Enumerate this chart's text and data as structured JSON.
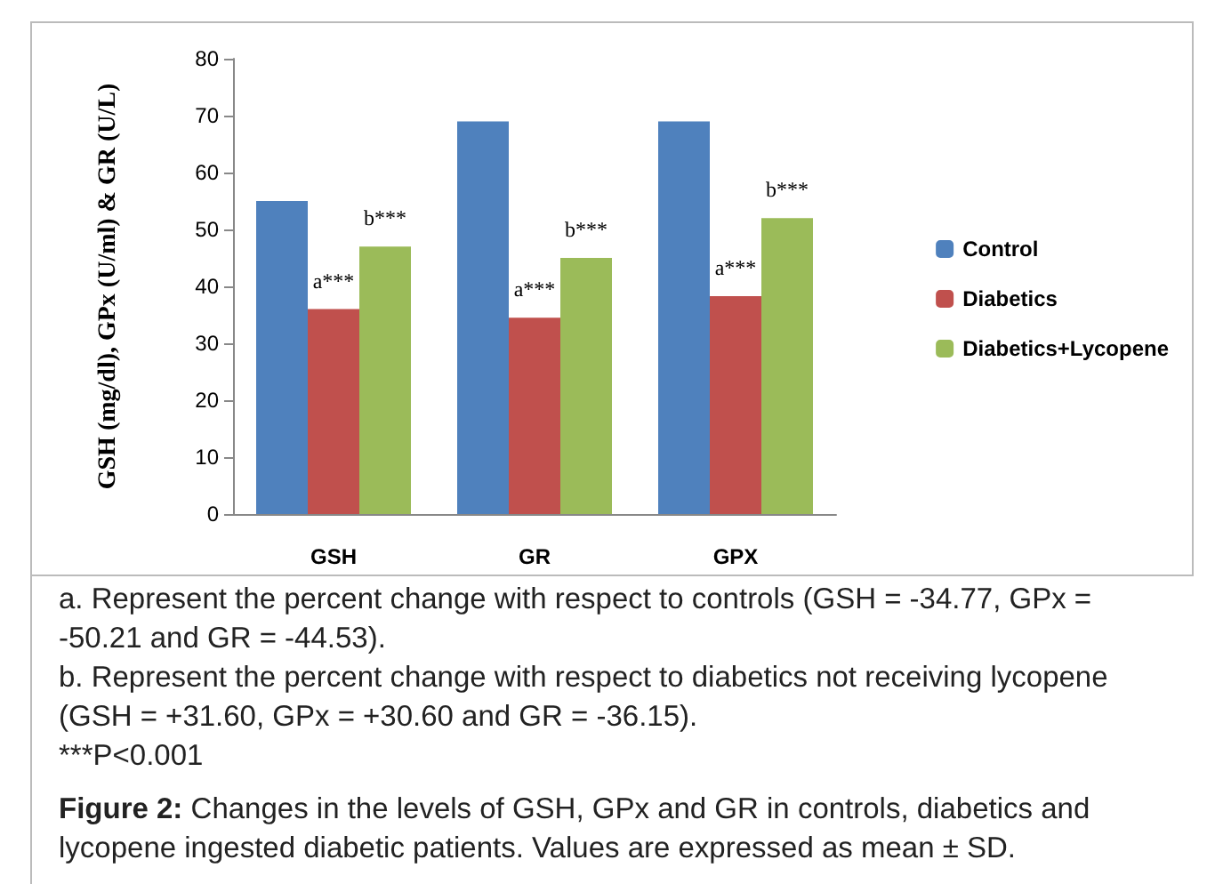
{
  "chart_data": {
    "type": "bar",
    "title": "Figure 2: Changes in the levels of GSH, GPx and GR in controls, diabetics and lycopene ingested diabetic patients. Values are expressed as mean ± SD.",
    "ylabel": "GSH (mg/dl), GPx (U/ml) & GR (U/L)",
    "categories": [
      "GSH",
      "GR",
      "GPX"
    ],
    "series": [
      {
        "name": "Control",
        "color": "#4f81bd",
        "values": [
          55,
          69,
          69
        ]
      },
      {
        "name": "Diabetics",
        "color": "#c0504d",
        "values": [
          36,
          34.5,
          38.3
        ],
        "value_labels": [
          "a***",
          "a***",
          "a***"
        ]
      },
      {
        "name": "Diabetics+Lycopene",
        "color": "#9bbb59",
        "values": [
          47,
          45,
          52
        ],
        "value_labels": [
          "b***",
          "b***",
          "b***"
        ]
      }
    ],
    "ylim": [
      0,
      80
    ],
    "yticks": [
      0,
      10,
      20,
      30,
      40,
      50,
      60,
      70,
      80
    ],
    "grid": false,
    "legend": "right",
    "annotations": [
      "a. Represent the percent change with respect to controls (GSH = -34.77, GPx = -50.21 and GR = -44.53).",
      "b. Represent the percent change with respect to diabetics not receiving lycopene (GSH = +31.60, GPx = +30.60 and  GR = -36.15).",
      "***P<0.001"
    ]
  }
}
